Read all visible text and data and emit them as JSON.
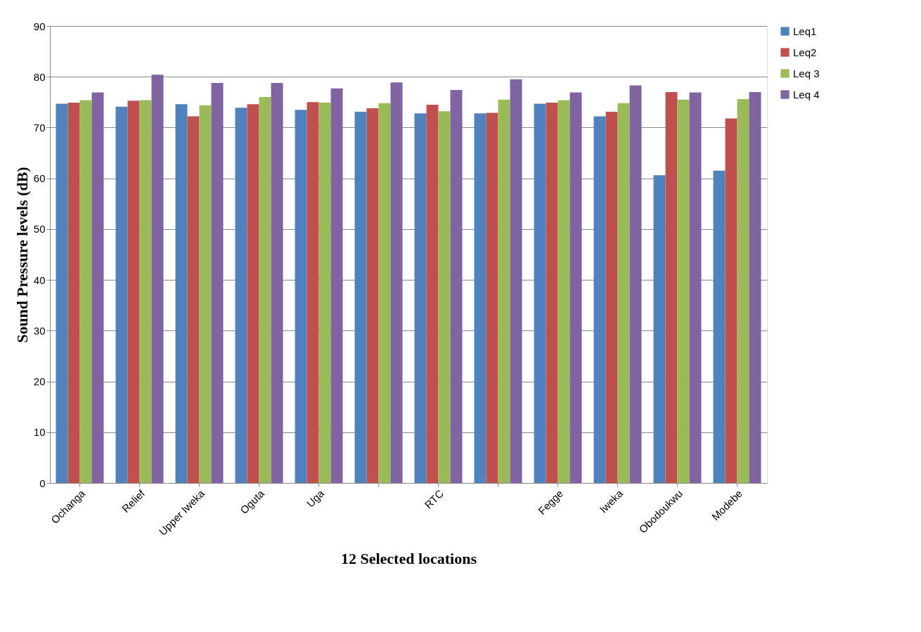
{
  "chart_data": {
    "type": "bar",
    "xlabel": "12 Selected locations",
    "ylabel": "Sound Pressure levels (dB)",
    "categories": [
      "Ochanga",
      "Relief",
      "Upper Iweka",
      "Oguta",
      "Uga",
      null,
      "RTC",
      null,
      "Fegge",
      "Iweka",
      "Obodoukwu",
      "Modebe"
    ],
    "series": [
      {
        "name": "Leq1",
        "color": "#4f81bd",
        "values": [
          74.7,
          74.1,
          74.6,
          73.9,
          73.5,
          73.1,
          72.8,
          72.8,
          74.7,
          72.2,
          60.6,
          61.5
        ]
      },
      {
        "name": "Leq2",
        "color": "#c0504d",
        "values": [
          74.9,
          75.3,
          72.2,
          74.6,
          75.0,
          73.8,
          74.5,
          72.9,
          74.9,
          73.1,
          77.0,
          71.8
        ]
      },
      {
        "name": "Leq 3",
        "color": "#9bbb59",
        "values": [
          75.4,
          75.4,
          74.4,
          76.0,
          74.9,
          74.8,
          73.2,
          75.5,
          75.4,
          74.8,
          75.5,
          75.6
        ]
      },
      {
        "name": "Leq 4",
        "color": "#8064a2",
        "values": [
          76.9,
          80.4,
          78.8,
          78.8,
          77.7,
          78.9,
          77.4,
          79.5,
          76.9,
          78.3,
          76.9,
          77.0
        ]
      }
    ],
    "ylim": [
      0,
      90
    ],
    "yticks": [
      0,
      10,
      20,
      30,
      40,
      50,
      60,
      70,
      80,
      90
    ],
    "grid": "y",
    "legend": "right"
  }
}
